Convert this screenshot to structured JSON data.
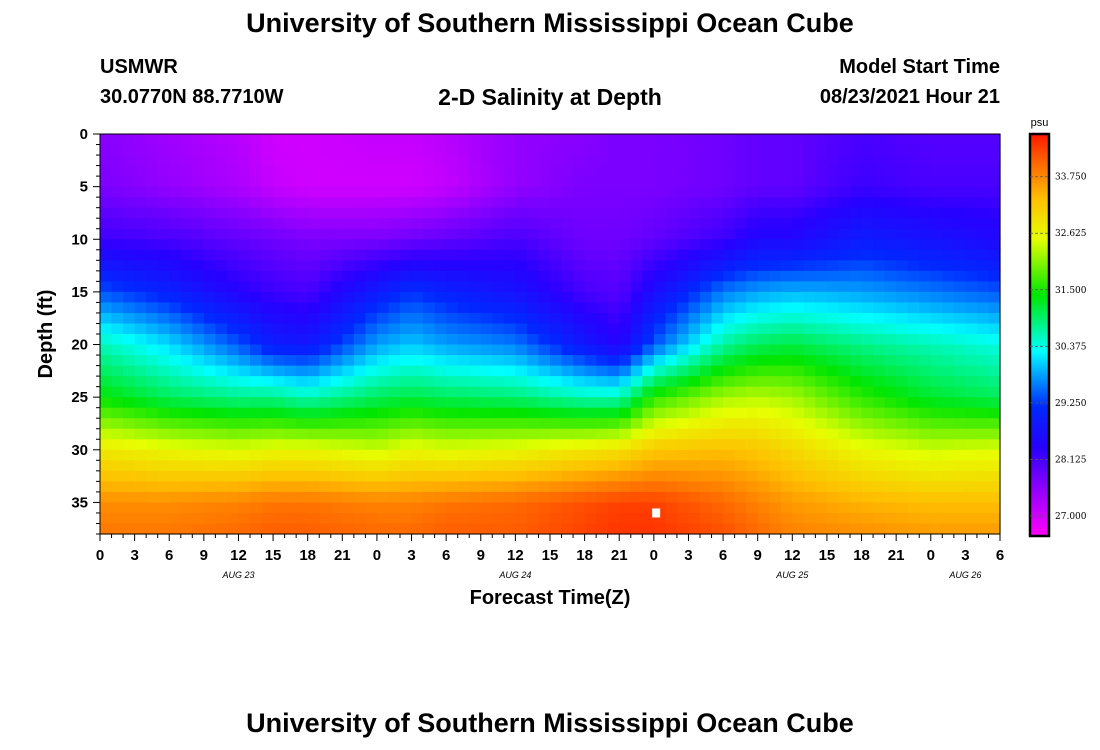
{
  "header": {
    "title": "University of Southern Mississippi Ocean Cube",
    "station": "USMWR",
    "coords": "30.0770N  88.7710W",
    "plot_title": "2-D Salinity at Depth",
    "start_label": "Model Start Time",
    "start_value": "08/23/2021 Hour 21"
  },
  "footer": {
    "title": "University of Southern Mississippi Ocean Cube"
  },
  "chart_data": {
    "type": "heatmap",
    "title": "2-D Salinity at Depth",
    "xlabel": "Forecast Time(Z)",
    "ylabel": "Depth (ft)",
    "x_ticks": [
      "0",
      "3",
      "6",
      "9",
      "12",
      "15",
      "18",
      "21",
      "0",
      "3",
      "6",
      "9",
      "12",
      "15",
      "18",
      "21",
      "0",
      "3",
      "6",
      "9",
      "12",
      "15",
      "18",
      "21",
      "0",
      "3",
      "6"
    ],
    "x_hours_range": [
      0,
      78
    ],
    "date_labels": [
      {
        "text": "AUG 23",
        "hour": 12
      },
      {
        "text": "AUG 24",
        "hour": 36
      },
      {
        "text": "AUG 25",
        "hour": 60
      },
      {
        "text": "AUG 26",
        "hour": 75
      }
    ],
    "y_ticks": [
      0,
      5,
      10,
      15,
      20,
      25,
      30,
      35
    ],
    "ylim": [
      0,
      38
    ],
    "colorbar": {
      "unit": "psu",
      "ticks": [
        "27.000",
        "28.125",
        "29.250",
        "30.375",
        "31.500",
        "32.625",
        "33.750"
      ],
      "range": [
        26.6,
        34.6
      ]
    },
    "marker": {
      "hour": 48.2,
      "depth_ft": 36
    },
    "salinity_profiles": {
      "hours": [
        0,
        6,
        12,
        15,
        18,
        24,
        27,
        30,
        36,
        42,
        45,
        48,
        54,
        57,
        60,
        66,
        72,
        78
      ],
      "depth_ft": [
        0,
        5,
        10,
        15,
        20,
        25,
        30,
        35,
        38
      ],
      "values": [
        [
          27.6,
          27.7,
          28.2,
          29.4,
          30.6,
          31.4,
          32.8,
          33.7,
          33.9
        ],
        [
          27.4,
          27.5,
          28.1,
          29.0,
          30.1,
          31.0,
          32.6,
          33.7,
          33.9
        ],
        [
          27.2,
          27.3,
          27.9,
          28.4,
          29.4,
          30.8,
          32.5,
          33.8,
          34.0
        ],
        [
          27.0,
          27.1,
          27.8,
          28.2,
          28.9,
          30.8,
          32.6,
          33.9,
          34.1
        ],
        [
          27.0,
          27.0,
          27.7,
          28.1,
          28.8,
          30.6,
          32.6,
          33.9,
          34.1
        ],
        [
          27.1,
          27.0,
          27.7,
          28.9,
          29.8,
          31.0,
          32.4,
          33.8,
          34.0
        ],
        [
          27.1,
          27.0,
          27.8,
          29.2,
          30.0,
          31.1,
          32.6,
          33.8,
          34.0
        ],
        [
          27.2,
          27.1,
          27.9,
          29.0,
          29.8,
          31.0,
          32.5,
          33.9,
          34.1
        ],
        [
          27.5,
          27.5,
          28.1,
          28.7,
          29.6,
          30.9,
          32.6,
          34.0,
          34.1
        ],
        [
          27.6,
          27.7,
          27.8,
          28.1,
          28.8,
          30.6,
          32.8,
          34.2,
          34.3
        ],
        [
          27.7,
          27.7,
          27.8,
          28.0,
          28.4,
          30.6,
          32.9,
          34.3,
          34.4
        ],
        [
          27.7,
          27.7,
          27.9,
          28.6,
          29.4,
          31.6,
          33.2,
          34.3,
          34.4
        ],
        [
          27.8,
          27.8,
          28.2,
          29.6,
          30.7,
          32.2,
          33.3,
          34.0,
          34.2
        ],
        [
          27.9,
          27.9,
          28.5,
          29.8,
          31.0,
          32.3,
          33.2,
          33.8,
          34.0
        ],
        [
          27.9,
          27.9,
          28.5,
          29.9,
          31.1,
          32.2,
          33.0,
          33.6,
          33.8
        ],
        [
          28.1,
          28.2,
          28.9,
          29.8,
          30.8,
          31.6,
          32.6,
          33.4,
          33.7
        ],
        [
          28.0,
          28.1,
          28.7,
          29.6,
          30.6,
          31.2,
          32.4,
          33.3,
          33.6
        ],
        [
          28.0,
          28.1,
          28.5,
          29.4,
          30.4,
          31.0,
          32.5,
          33.3,
          33.6
        ]
      ]
    }
  }
}
